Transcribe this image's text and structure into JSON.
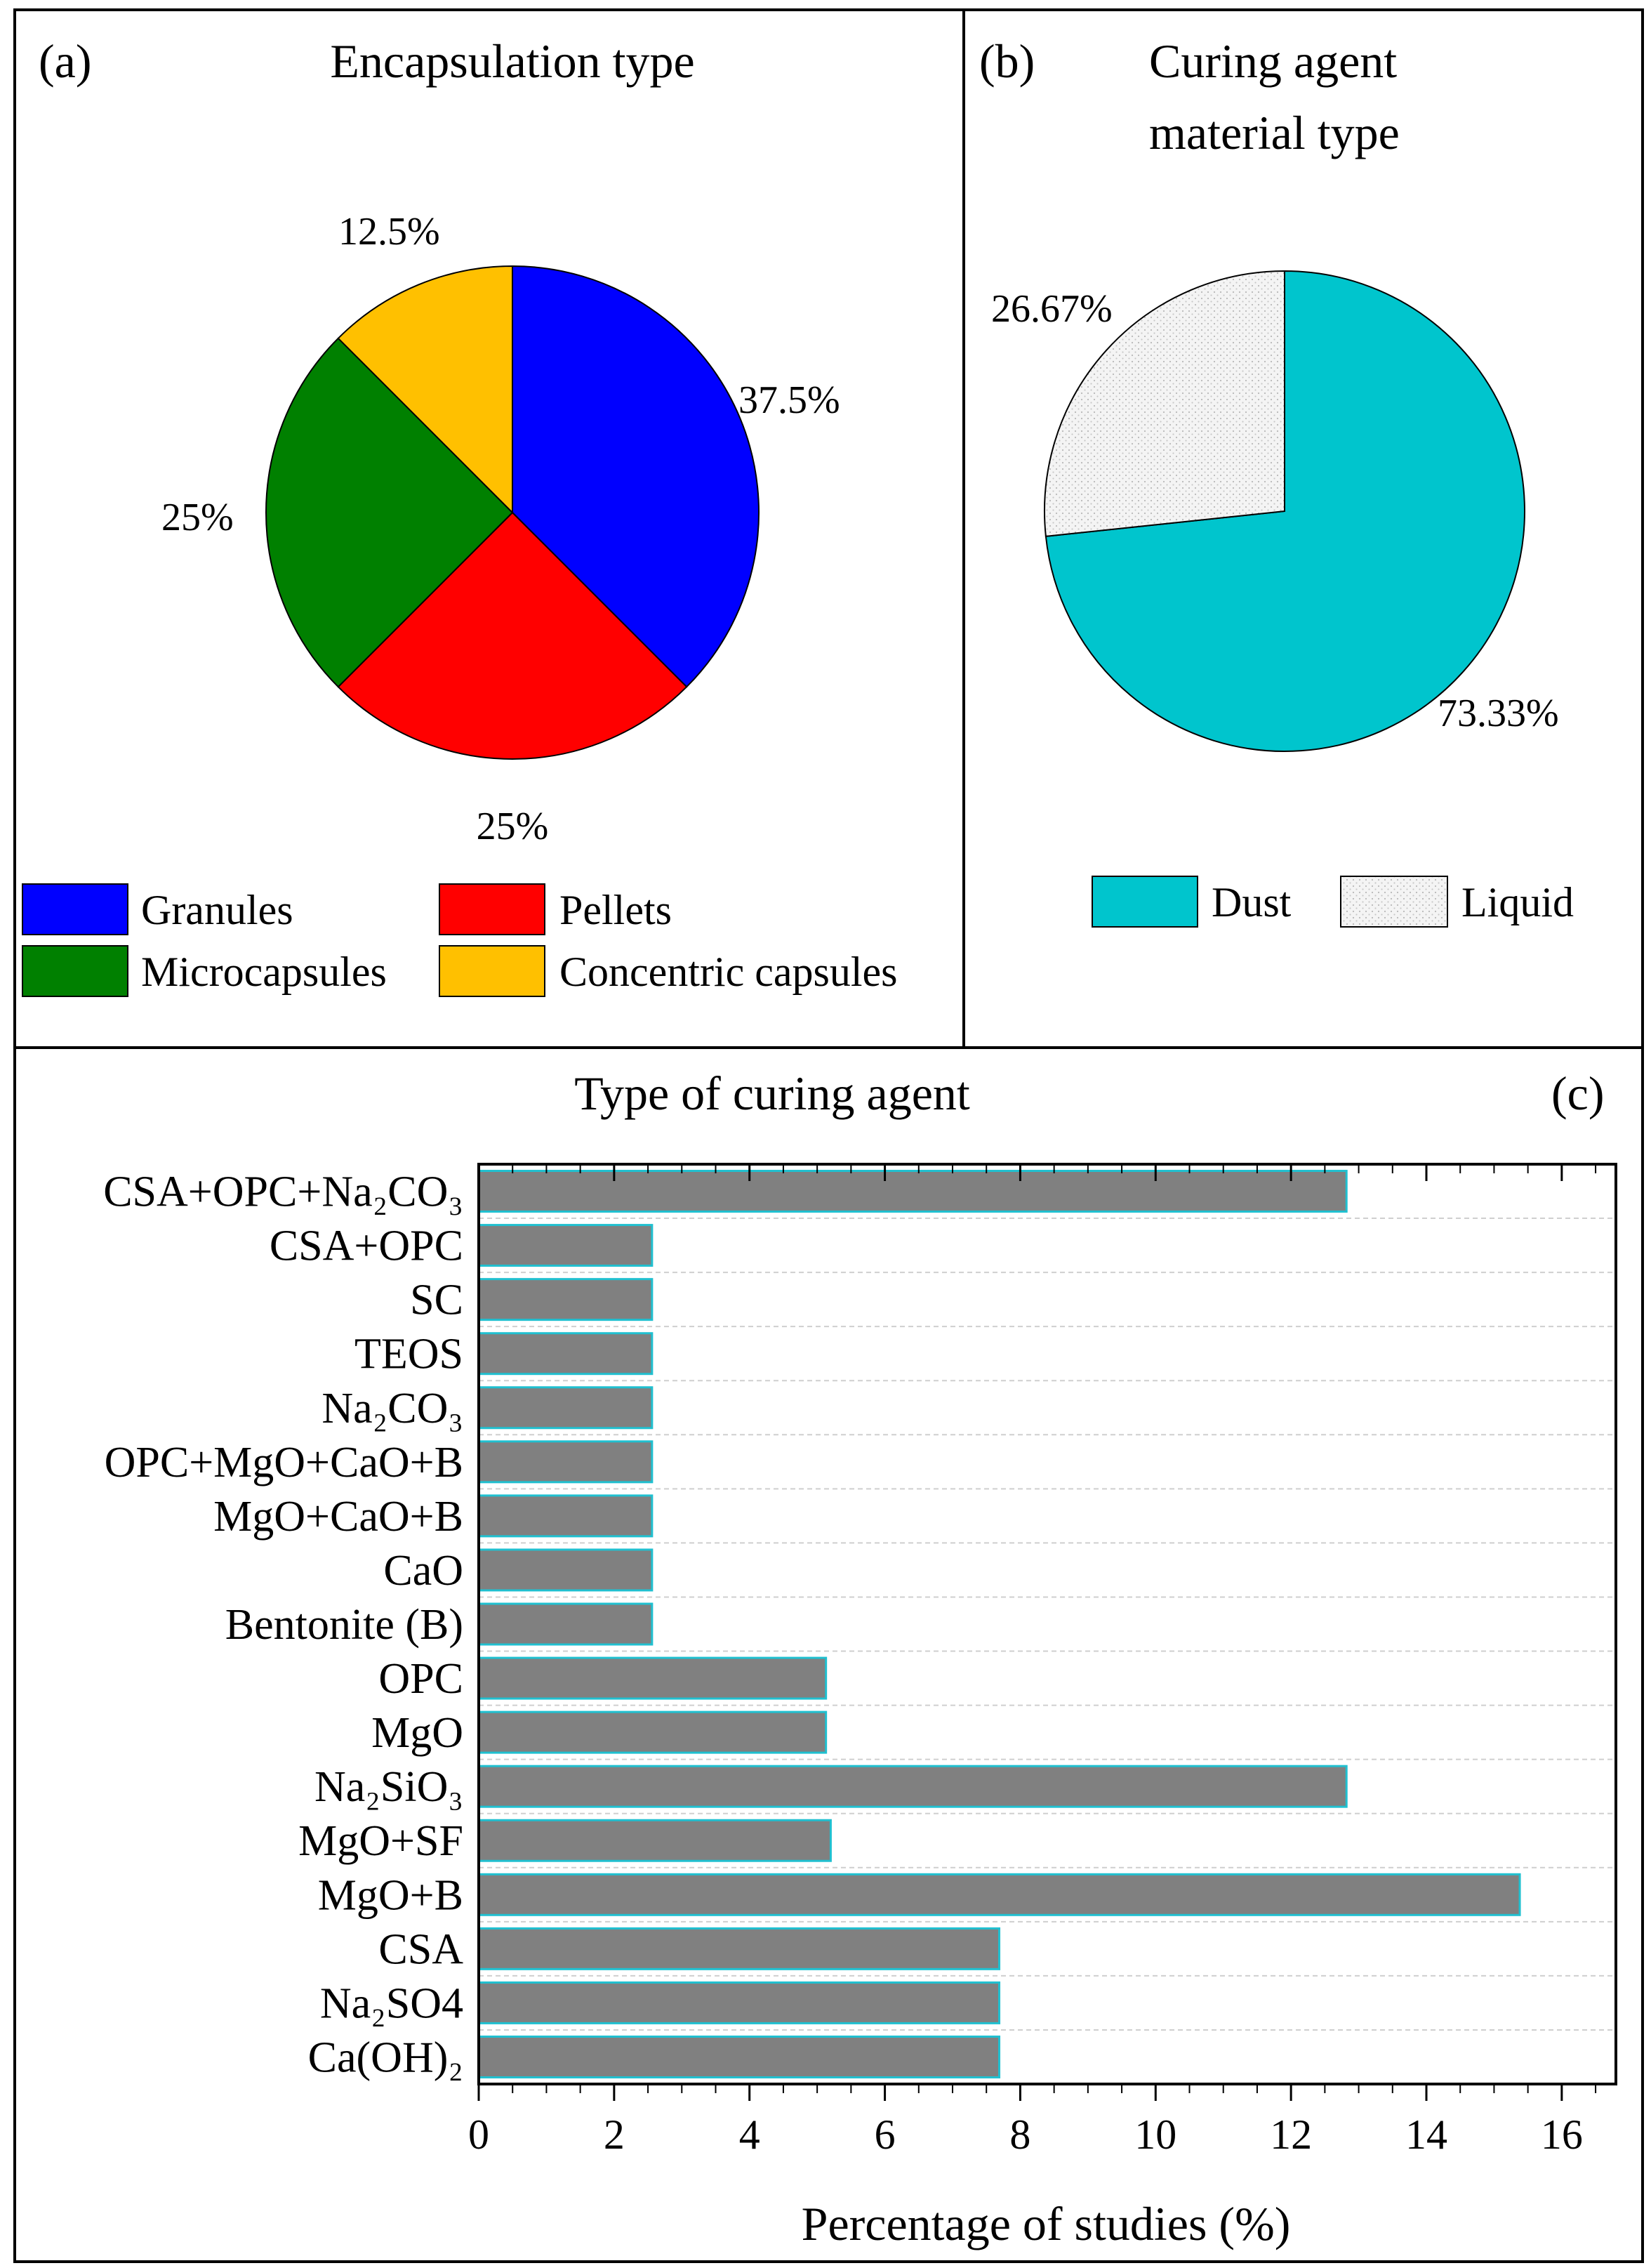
{
  "chart_data": [
    {
      "id": "a",
      "type": "pie",
      "panel_label": "(a)",
      "title": "Encapsulation type",
      "slices": [
        {
          "label": "Granules",
          "value": 37.5,
          "value_label": "37.5%",
          "color": "#0000ff"
        },
        {
          "label": "Pellets",
          "value": 25,
          "value_label": "25%",
          "color": "#ff0000"
        },
        {
          "label": "Microcapsules",
          "value": 25,
          "value_label": "25%",
          "color": "#008000"
        },
        {
          "label": "Concentric capsules",
          "value": 12.5,
          "value_label": "12.5%",
          "color": "#ffc000"
        }
      ],
      "legend_placement": "bottom"
    },
    {
      "id": "b",
      "type": "pie",
      "panel_label": "(b)",
      "title_lines": [
        "Curing agent",
        "material type"
      ],
      "slices": [
        {
          "label": "Dust",
          "value": 73.33,
          "value_label": "73.33%",
          "color": "#00c5cd"
        },
        {
          "label": "Liquid",
          "value": 26.67,
          "value_label": "26.67%",
          "color": "#f3f3f3",
          "pattern": "dots"
        }
      ],
      "legend_placement": "bottom"
    },
    {
      "id": "c",
      "type": "bar",
      "orientation": "horizontal",
      "panel_label": "(c)",
      "title": "Type of curing agent",
      "xlabel": "Percentage of studies (%)",
      "ylabel": "",
      "xlim": [
        0,
        16.8
      ],
      "xticks": [
        0,
        2,
        4,
        6,
        8,
        10,
        12,
        14,
        16
      ],
      "grid": "horizontal dashed",
      "bar_color": "#808080",
      "bar_edge_color": "#20c0d0",
      "categories": [
        "CSA+OPC+Na₂CO₃",
        "CSA+OPC",
        "SC",
        "TEOS",
        "Na₂CO₃",
        "OPC+MgO+CaO+B",
        "MgO+CaO+B",
        "CaO",
        "Bentonite (B)",
        "OPC",
        "MgO",
        "Na₂SiO₃",
        "MgO+SF",
        "MgO+B",
        "CSA",
        "Na₂SO4",
        "Ca(OH)₂"
      ],
      "values": [
        12.82,
        2.56,
        2.56,
        2.56,
        2.56,
        2.56,
        2.56,
        2.56,
        2.56,
        5.13,
        5.13,
        12.82,
        5.2,
        15.38,
        7.69,
        7.69,
        7.69
      ]
    }
  ]
}
